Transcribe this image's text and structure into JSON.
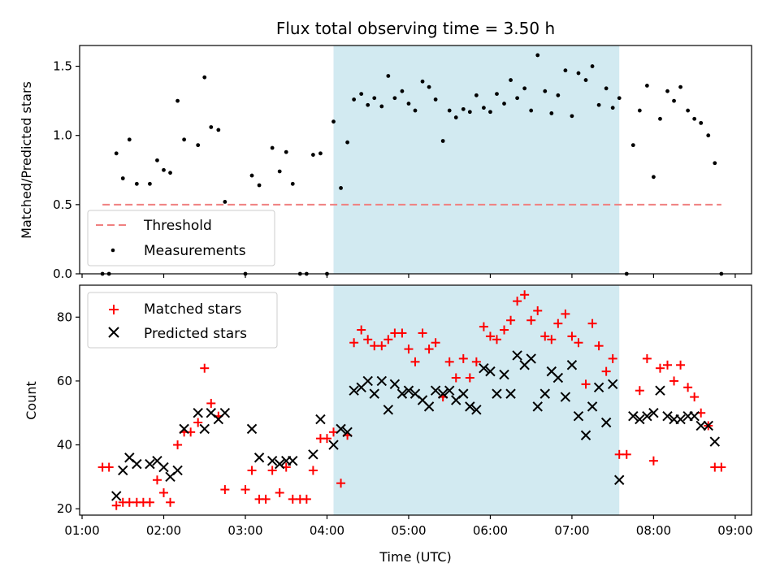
{
  "chart_data": [
    {
      "type": "scatter",
      "title": "Flux total observing time = 3.50 h",
      "xlabel": "",
      "ylabel": "Matched/Predicted stars",
      "ylim": [
        0,
        1.65
      ],
      "yticks": [
        "0.0",
        "0.5",
        "1.0",
        "1.5"
      ],
      "ytick_values": [
        0,
        0.5,
        1.0,
        1.5
      ],
      "shaded_span": {
        "x": [
          4.08,
          7.58
        ],
        "color": "#add8e6"
      },
      "legend": {
        "placement": "lower-left",
        "entries": [
          "Threshold",
          "Measurements"
        ]
      },
      "series": [
        {
          "name": "Threshold",
          "style": "dashed-line",
          "color": "#f08080",
          "x": [
            1.25,
            8.83
          ],
          "y": [
            0.5,
            0.5
          ]
        },
        {
          "name": "Measurements",
          "style": "dot",
          "color": "#000000",
          "x": [
            1.25,
            1.33,
            1.42,
            1.5,
            1.58,
            1.67,
            1.83,
            1.92,
            2.0,
            2.08,
            2.17,
            2.25,
            2.42,
            2.5,
            2.58,
            2.67,
            2.75,
            3.0,
            3.08,
            3.17,
            3.33,
            3.42,
            3.5,
            3.58,
            3.67,
            3.75,
            3.83,
            3.92,
            4.0,
            4.08,
            4.17,
            4.25,
            4.33,
            4.42,
            4.5,
            4.58,
            4.67,
            4.75,
            4.83,
            4.92,
            5.0,
            5.08,
            5.17,
            5.25,
            5.33,
            5.42,
            5.5,
            5.58,
            5.67,
            5.75,
            5.83,
            5.92,
            6.0,
            6.08,
            6.17,
            6.25,
            6.33,
            6.42,
            6.5,
            6.58,
            6.67,
            6.75,
            6.83,
            6.92,
            7.0,
            7.08,
            7.17,
            7.25,
            7.33,
            7.42,
            7.5,
            7.58,
            7.67,
            7.75,
            7.83,
            7.92,
            8.0,
            8.08,
            8.17,
            8.25,
            8.33,
            8.42,
            8.5,
            8.58,
            8.67,
            8.75,
            8.83
          ],
          "y": [
            0.0,
            0.0,
            0.87,
            0.69,
            0.97,
            0.65,
            0.65,
            0.82,
            0.75,
            0.73,
            1.25,
            0.97,
            0.93,
            1.42,
            1.06,
            1.04,
            0.52,
            0.0,
            0.71,
            0.64,
            0.91,
            0.74,
            0.88,
            0.65,
            0.0,
            0.0,
            0.86,
            0.87,
            0.0,
            1.1,
            0.62,
            0.95,
            1.26,
            1.3,
            1.22,
            1.27,
            1.21,
            1.43,
            1.27,
            1.32,
            1.23,
            1.18,
            1.39,
            1.35,
            1.26,
            0.96,
            1.18,
            1.13,
            1.19,
            1.17,
            1.29,
            1.2,
            1.17,
            1.3,
            1.23,
            1.4,
            1.27,
            1.34,
            1.18,
            1.58,
            1.32,
            1.16,
            1.29,
            1.47,
            1.14,
            1.45,
            1.4,
            1.5,
            1.22,
            1.34,
            1.2,
            1.27,
            0.0,
            0.93,
            1.18,
            1.36,
            0.7,
            1.12,
            1.32,
            1.25,
            1.35,
            1.18,
            1.12,
            1.09,
            1.0,
            0.8,
            0.0
          ]
        }
      ]
    },
    {
      "type": "scatter",
      "title": "",
      "xlabel": "Time (UTC)",
      "ylabel": "Count",
      "ylim": [
        18,
        90
      ],
      "yticks": [
        "20",
        "40",
        "60",
        "80"
      ],
      "ytick_values": [
        20,
        40,
        60,
        80
      ],
      "xlim": [
        0.97,
        9.2
      ],
      "xticks": [
        "01:00",
        "02:00",
        "03:00",
        "04:00",
        "05:00",
        "06:00",
        "07:00",
        "08:00",
        "09:00"
      ],
      "xtick_values": [
        1,
        2,
        3,
        4,
        5,
        6,
        7,
        8,
        9
      ],
      "shaded_span": {
        "x": [
          4.08,
          7.58
        ],
        "color": "#add8e6"
      },
      "legend": {
        "placement": "upper-left",
        "entries": [
          "Matched stars",
          "Predicted stars"
        ]
      },
      "series": [
        {
          "name": "Matched stars",
          "style": "plus",
          "color": "#ff0000",
          "x": [
            1.25,
            1.33,
            1.42,
            1.5,
            1.58,
            1.67,
            1.75,
            1.83,
            1.92,
            2.0,
            2.08,
            2.17,
            2.25,
            2.33,
            2.42,
            2.5,
            2.58,
            2.67,
            2.75,
            3.0,
            3.08,
            3.17,
            3.25,
            3.33,
            3.42,
            3.5,
            3.58,
            3.67,
            3.75,
            3.83,
            3.92,
            4.0,
            4.08,
            4.17,
            4.25,
            4.33,
            4.42,
            4.5,
            4.58,
            4.67,
            4.75,
            4.83,
            4.92,
            5.0,
            5.08,
            5.17,
            5.25,
            5.33,
            5.42,
            5.5,
            5.58,
            5.67,
            5.75,
            5.83,
            5.92,
            6.0,
            6.08,
            6.17,
            6.25,
            6.33,
            6.42,
            6.5,
            6.58,
            6.67,
            6.75,
            6.83,
            6.92,
            7.0,
            7.08,
            7.17,
            7.25,
            7.33,
            7.42,
            7.5,
            7.58,
            7.67,
            7.83,
            7.92,
            8.0,
            8.08,
            8.17,
            8.25,
            8.33,
            8.42,
            8.5,
            8.58,
            8.67,
            8.75,
            8.83
          ],
          "y": [
            33,
            33,
            21,
            22,
            22,
            22,
            22,
            22,
            29,
            25,
            22,
            40,
            44,
            44,
            47,
            64,
            53,
            49,
            26,
            26,
            32,
            23,
            23,
            32,
            25,
            33,
            23,
            23,
            23,
            32,
            42,
            42,
            44,
            28,
            43,
            72,
            76,
            73,
            71,
            71,
            73,
            75,
            75,
            70,
            66,
            75,
            70,
            72,
            55,
            66,
            61,
            67,
            61,
            66,
            77,
            74,
            73,
            76,
            79,
            85,
            87,
            79,
            82,
            74,
            73,
            78,
            81,
            74,
            72,
            59,
            78,
            71,
            63,
            67,
            37,
            37,
            57,
            67,
            35,
            64,
            65,
            60,
            65,
            58,
            55,
            50,
            46,
            33,
            33
          ]
        },
        {
          "name": "Predicted stars",
          "style": "x",
          "color": "#000000",
          "x": [
            1.42,
            1.5,
            1.58,
            1.67,
            1.83,
            1.92,
            2.0,
            2.08,
            2.17,
            2.25,
            2.42,
            2.5,
            2.58,
            2.67,
            2.75,
            3.08,
            3.17,
            3.33,
            3.42,
            3.5,
            3.58,
            3.83,
            3.92,
            4.08,
            4.17,
            4.25,
            4.33,
            4.42,
            4.5,
            4.58,
            4.67,
            4.75,
            4.83,
            4.92,
            5.0,
            5.08,
            5.17,
            5.25,
            5.33,
            5.42,
            5.5,
            5.58,
            5.67,
            5.75,
            5.83,
            5.92,
            6.0,
            6.08,
            6.17,
            6.25,
            6.33,
            6.42,
            6.5,
            6.58,
            6.67,
            6.75,
            6.83,
            6.92,
            7.0,
            7.08,
            7.17,
            7.25,
            7.33,
            7.42,
            7.5,
            7.58,
            7.75,
            7.83,
            7.92,
            8.0,
            8.08,
            8.17,
            8.25,
            8.33,
            8.42,
            8.5,
            8.58,
            8.67,
            8.75
          ],
          "y": [
            24,
            32,
            36,
            34,
            34,
            35,
            33,
            30,
            32,
            45,
            50,
            45,
            50,
            48,
            50,
            45,
            36,
            35,
            34,
            35,
            35,
            37,
            48,
            40,
            45,
            44,
            57,
            58,
            60,
            56,
            60,
            51,
            59,
            56,
            57,
            56,
            54,
            52,
            57,
            56,
            57,
            54,
            56,
            52,
            51,
            64,
            63,
            56,
            62,
            56,
            68,
            65,
            67,
            52,
            56,
            63,
            61,
            55,
            65,
            49,
            43,
            52,
            58,
            47,
            59,
            29,
            49,
            48,
            49,
            50,
            57,
            49,
            48,
            48,
            49,
            49,
            46,
            46,
            41
          ]
        }
      ]
    }
  ]
}
